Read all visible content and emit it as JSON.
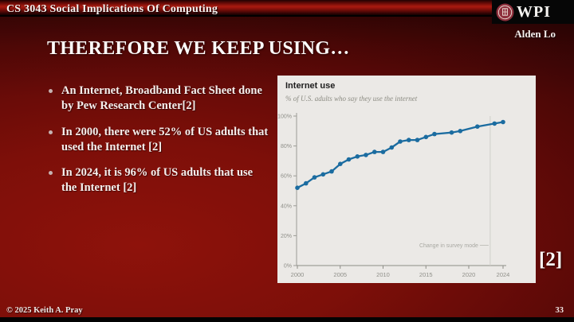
{
  "header": {
    "course_title": "CS 3043 Social Implications Of Computing",
    "logo_text": "WPI",
    "author": "Alden Lo"
  },
  "slide": {
    "title": "THEREFORE WE KEEP USING…",
    "bullets": [
      "An Internet, Broadband Fact Sheet done by Pew Research Center[2]",
      "In 2000, there were 52% of US adults that used the Internet [2]",
      "In 2024, it is 96% of US adults that use the Internet [2]"
    ],
    "citation": "[2]"
  },
  "footer": {
    "copyright": "© 2025 Keith A. Pray",
    "page_number": "33"
  },
  "chart_data": {
    "type": "line",
    "title": "Internet use",
    "subtitle": "% of U.S. adults who say they use the internet",
    "x": [
      2000,
      2001,
      2002,
      2003,
      2004,
      2005,
      2006,
      2007,
      2008,
      2009,
      2010,
      2011,
      2012,
      2013,
      2014,
      2015,
      2016,
      2018,
      2019,
      2021,
      2023,
      2024
    ],
    "values": [
      52,
      55,
      59,
      61,
      63,
      68,
      71,
      73,
      74,
      76,
      76,
      79,
      83,
      84,
      84,
      86,
      88,
      89,
      90,
      93,
      95,
      96
    ],
    "xlabel": "",
    "ylabel": "",
    "xlim": [
      2000,
      2024
    ],
    "ylim": [
      0,
      100
    ],
    "xticks": [
      2000,
      2005,
      2010,
      2015,
      2020,
      2024
    ],
    "yticks": [
      0,
      20,
      40,
      60,
      80,
      100
    ],
    "grid": false,
    "legend_position": "none",
    "annotation": {
      "text": "Change in survey mode",
      "x": 2022.5
    },
    "line_color": "#1b6ca0",
    "panel_color": "#ebe9e6"
  }
}
